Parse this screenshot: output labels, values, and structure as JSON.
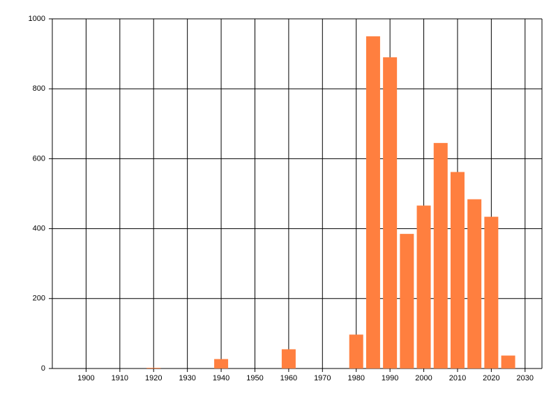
{
  "chart_data": {
    "type": "bar",
    "x": [
      1920,
      1940,
      1960,
      1980,
      1985,
      1990,
      1995,
      2000,
      2005,
      2010,
      2015,
      2020,
      2025
    ],
    "values": [
      2,
      27,
      55,
      97,
      950,
      890,
      385,
      466,
      645,
      562,
      484,
      434,
      37
    ],
    "color": "#ff7f3f",
    "xlim": [
      1890,
      2035
    ],
    "xticks": [
      1900,
      1910,
      1920,
      1930,
      1940,
      1950,
      1960,
      1970,
      1980,
      1990,
      2000,
      2010,
      2020,
      2030
    ],
    "ylim": [
      0,
      1000
    ],
    "yticks": [
      0,
      200,
      400,
      600,
      800,
      1000
    ],
    "grid": true
  }
}
